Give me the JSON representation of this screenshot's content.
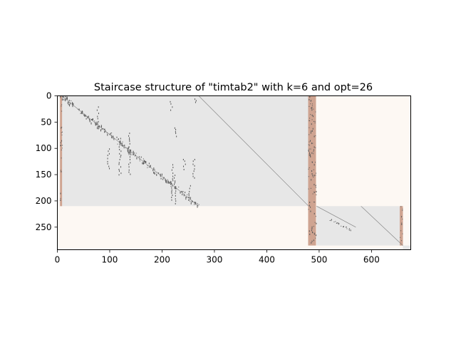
{
  "chart_data": {
    "type": "heatmap",
    "title": "Staircase structure of \"timtab2\" with k=6 and opt=26",
    "xlabel": "",
    "ylabel": "",
    "xlim": [
      0,
      675
    ],
    "ylim": [
      293,
      0
    ],
    "x_ticks": [
      0,
      100,
      200,
      300,
      400,
      500,
      600
    ],
    "y_ticks": [
      0,
      50,
      100,
      150,
      200,
      250
    ],
    "colors": {
      "background": "#fdf8f3",
      "block": "#e7e7e7",
      "linking_columns": "#cfa491",
      "nonzero": "#555555"
    },
    "blocks": [
      {
        "name": "block-1",
        "cols": [
          6,
          480
        ],
        "rows": [
          0,
          210
        ]
      },
      {
        "name": "block-2",
        "cols": [
          495,
          660
        ],
        "rows": [
          210,
          285
        ]
      },
      {
        "name": "block-3",
        "cols": [
          660,
          675
        ],
        "rows": [
          285,
          293
        ]
      }
    ],
    "linking_columns": [
      {
        "cols": [
          5,
          9
        ],
        "rows": [
          0,
          210
        ]
      },
      {
        "cols": [
          479,
          494
        ],
        "rows": [
          0,
          285
        ]
      },
      {
        "cols": [
          654,
          660
        ],
        "rows": [
          210,
          285
        ]
      }
    ],
    "diagonals": [
      {
        "from": [
          270,
          0
        ],
        "to": [
          480,
          210
        ]
      },
      {
        "from": [
          8,
          0
        ],
        "to": [
          270,
          210
        ]
      },
      {
        "from": [
          495,
          210
        ],
        "to": [
          570,
          250
        ]
      },
      {
        "from": [
          580,
          210
        ],
        "to": [
          660,
          285
        ]
      }
    ]
  }
}
